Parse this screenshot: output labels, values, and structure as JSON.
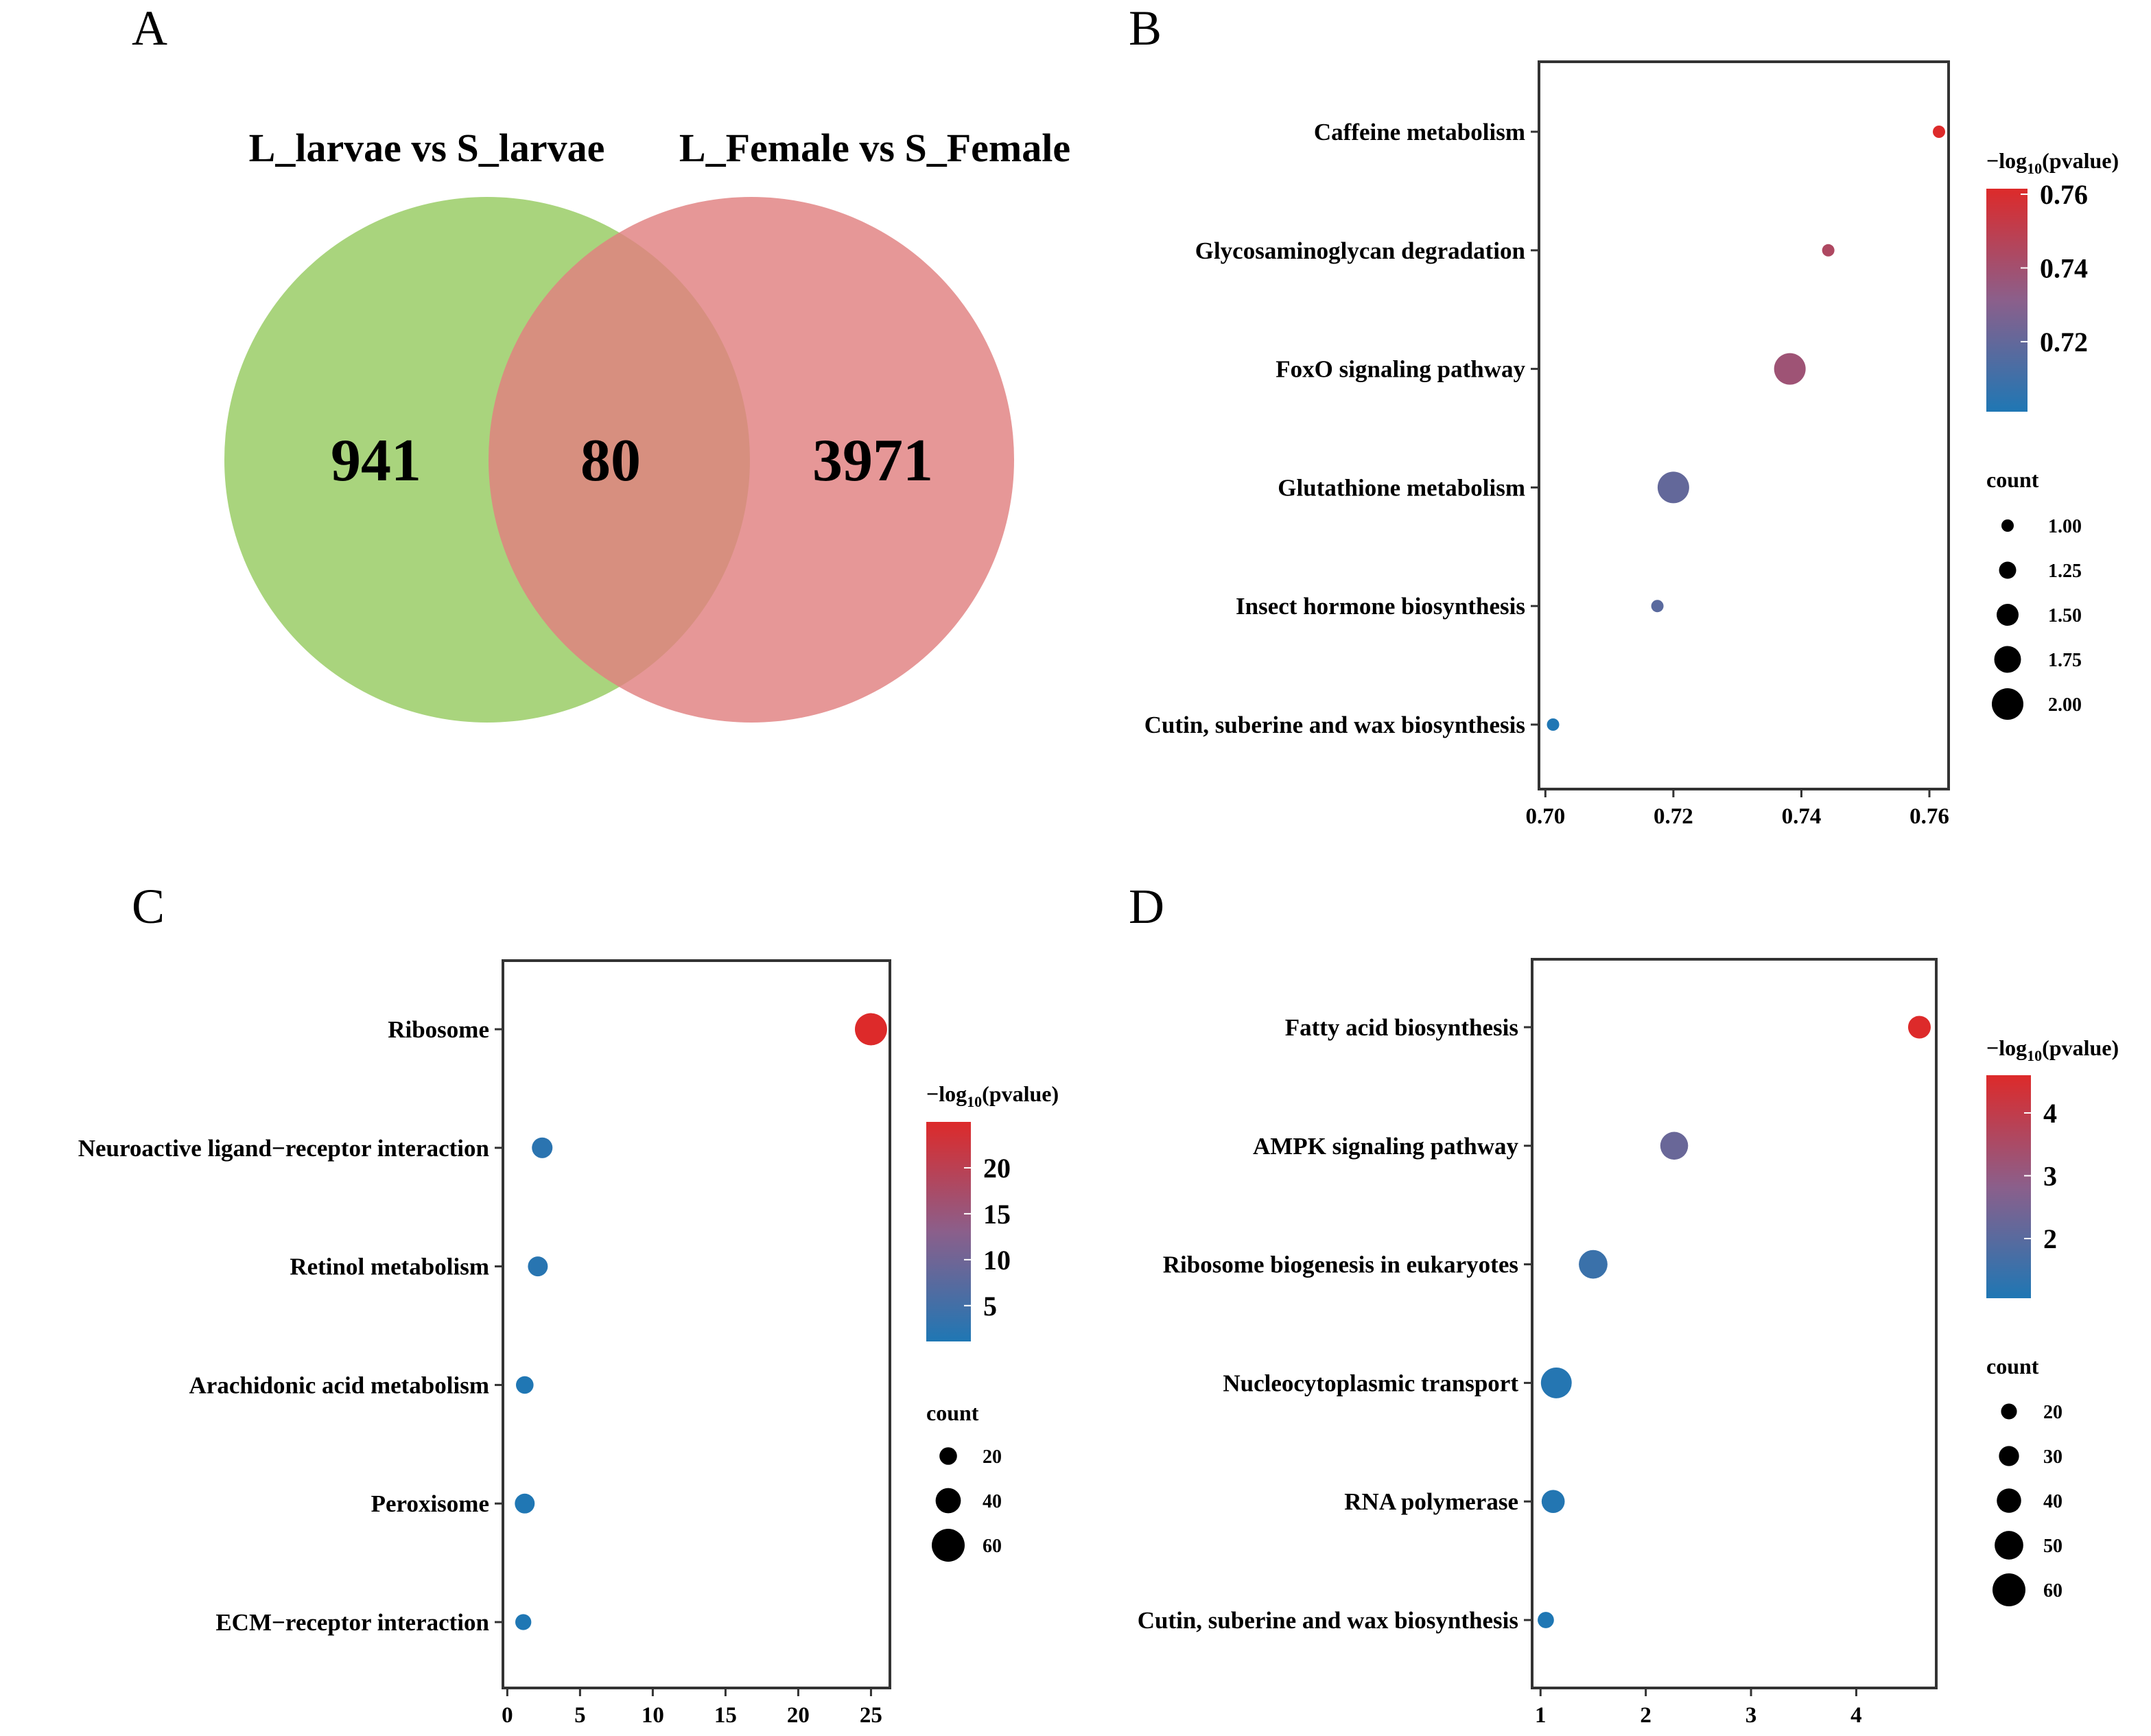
{
  "venn": {
    "letter": "A",
    "sets": [
      {
        "name": "L_larvae vs S_larvae",
        "only": "941",
        "color": "#9ACC66"
      },
      {
        "name": "L_Female vs S_Female",
        "only": "3971",
        "color": "#E08080"
      }
    ],
    "overlap": "80"
  },
  "colormap": {
    "low": "#1f77b4",
    "mid": "#8B5F8B",
    "high": "#DD2A2A"
  },
  "chart_data": [
    {
      "letter": "B",
      "type": "scatter",
      "title": "",
      "xlabel": "",
      "ylabel": "",
      "xlim": [
        0.699,
        0.763
      ],
      "xticks": [
        0.7,
        0.72,
        0.74,
        0.76
      ],
      "xtick_labels": [
        "0.70",
        "0.72",
        "0.74",
        "0.76"
      ],
      "categories": [
        "Caffeine metabolism",
        "Glycosaminoglycan degradation",
        "FoxO signaling pathway",
        "Glutathione metabolism",
        "Insect hormone biosynthesis",
        "Cutin, suberine and wax biosynthesis"
      ],
      "x": [
        0.7615,
        0.7442,
        0.7382,
        0.72,
        0.7175,
        0.7012
      ],
      "count": [
        1,
        1,
        2,
        2,
        1,
        1
      ],
      "neglog10p": [
        0.7615,
        0.7442,
        0.7382,
        0.72,
        0.7175,
        0.7012
      ],
      "colorbar": {
        "title": "−log10(pvalue)",
        "min": 0.701,
        "max": 0.7615,
        "ticks": [
          0.72,
          0.74,
          0.76
        ],
        "tick_labels": [
          "0.72",
          "0.74",
          "0.76"
        ]
      },
      "size_legend": {
        "title": "count",
        "values": [
          1.0,
          1.25,
          1.5,
          1.75,
          2.0
        ],
        "labels": [
          "1.00",
          "1.25",
          "1.50",
          "1.75",
          "2.00"
        ],
        "smin": 1,
        "smax": 2
      }
    },
    {
      "letter": "C",
      "type": "scatter",
      "title": "",
      "xlabel": "",
      "ylabel": "",
      "xlim": [
        -0.3,
        26.3
      ],
      "xticks": [
        0,
        5,
        10,
        15,
        20,
        25
      ],
      "xtick_labels": [
        "0",
        "5",
        "10",
        "15",
        "20",
        "25"
      ],
      "categories": [
        "Ribosome",
        "Neuroactive ligand−receptor interaction",
        "Retinol metabolism",
        "Arachidonic acid metabolism",
        "Peroxisome",
        "ECM−receptor interaction"
      ],
      "x": [
        25.0,
        2.4,
        2.1,
        1.2,
        1.2,
        1.1
      ],
      "count": [
        58,
        28,
        26,
        20,
        26,
        16
      ],
      "neglog10p": [
        25.0,
        2.4,
        2.1,
        1.2,
        1.2,
        1.1
      ],
      "colorbar": {
        "title": "−log10(pvalue)",
        "min": 1.1,
        "max": 25.0,
        "ticks": [
          5,
          10,
          15,
          20
        ],
        "tick_labels": [
          "5",
          "10",
          "15",
          "20"
        ]
      },
      "size_legend": {
        "title": "count",
        "values": [
          20,
          40,
          60
        ],
        "labels": [
          "20",
          "40",
          "60"
        ],
        "smin": 10,
        "smax": 60
      }
    },
    {
      "letter": "D",
      "type": "scatter",
      "title": "",
      "xlabel": "",
      "ylabel": "",
      "xlim": [
        0.92,
        4.76
      ],
      "xticks": [
        1,
        2,
        3,
        4
      ],
      "xtick_labels": [
        "1",
        "2",
        "3",
        "4"
      ],
      "categories": [
        "Fatty acid biosynthesis",
        "AMPK signaling pathway",
        "Ribosome biogenesis in eukaryotes",
        "Nucleocytoplasmic transport",
        "RNA polymerase",
        "Cutin, suberine and wax biosynthesis"
      ],
      "x": [
        4.6,
        2.27,
        1.5,
        1.15,
        1.12,
        1.05
      ],
      "count": [
        36,
        48,
        50,
        55,
        37,
        21
      ],
      "neglog10p": [
        4.6,
        2.27,
        1.5,
        1.15,
        1.12,
        1.05
      ],
      "colorbar": {
        "title": "−log10(pvalue)",
        "min": 1.05,
        "max": 4.6,
        "ticks": [
          2,
          3,
          4
        ],
        "tick_labels": [
          "2",
          "3",
          "4"
        ]
      },
      "size_legend": {
        "title": "count",
        "values": [
          20,
          30,
          40,
          50,
          60
        ],
        "labels": [
          "20",
          "30",
          "40",
          "50",
          "60"
        ],
        "smin": 15,
        "smax": 60
      }
    }
  ]
}
